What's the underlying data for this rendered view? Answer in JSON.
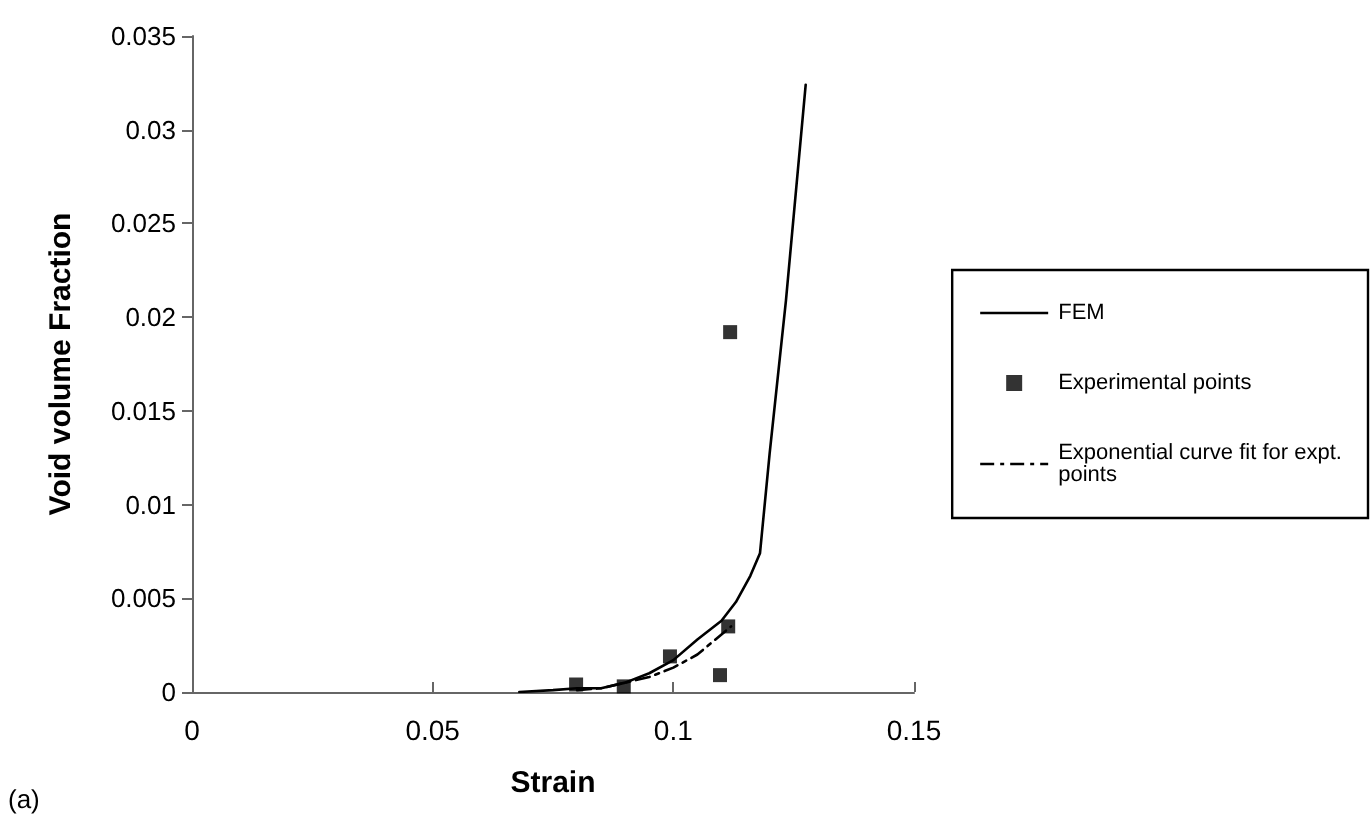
{
  "chart_data": {
    "type": "line",
    "xlabel": "Strain",
    "ylabel": "Void volume Fraction",
    "xlim": [
      0,
      0.15
    ],
    "xticks": [
      0,
      0.05,
      0.1,
      0.15
    ],
    "ylim": [
      0,
      0.035
    ],
    "yticks": [
      0,
      0.005,
      0.01,
      0.015,
      0.02,
      0.025,
      0.03,
      0.035
    ],
    "grid": false,
    "legend": "right",
    "annotations": [
      "(a)"
    ],
    "series": [
      {
        "name": "FEM",
        "type": "line",
        "color": "#000000",
        "line_style": "solid",
        "marker": "none",
        "x": [
          0.068,
          0.075,
          0.08,
          0.085,
          0.09,
          0.095,
          0.1,
          0.105,
          0.11,
          0.113,
          0.116,
          0.118,
          0.12,
          0.1234,
          0.1275
        ],
        "values": [
          0,
          0.0001,
          0.0002,
          0.0002,
          0.0005,
          0.001,
          0.0017,
          0.0028,
          0.0038,
          0.0048,
          0.0062,
          0.0074,
          0.0127,
          0.0209,
          0.0324
        ]
      },
      {
        "name": "Experimental points",
        "type": "scatter",
        "color": "#000000",
        "marker": "square",
        "x": [
          0.0798,
          0.0897,
          0.0993,
          0.1097,
          0.1114,
          0.1118
        ],
        "values": [
          0.0004,
          0.0003,
          0.0019,
          0.0009,
          0.0035,
          0.0192
        ]
      },
      {
        "name": "Exponential curve fit for expt. points",
        "type": "line",
        "color": "#000000",
        "line_style": "dashed",
        "marker": "none",
        "x": [
          0.08,
          0.085,
          0.09,
          0.095,
          0.1,
          0.105,
          0.112
        ],
        "values": [
          0.0001,
          0.0002,
          0.0005,
          0.0008,
          0.0013,
          0.002,
          0.0035
        ]
      }
    ]
  }
}
